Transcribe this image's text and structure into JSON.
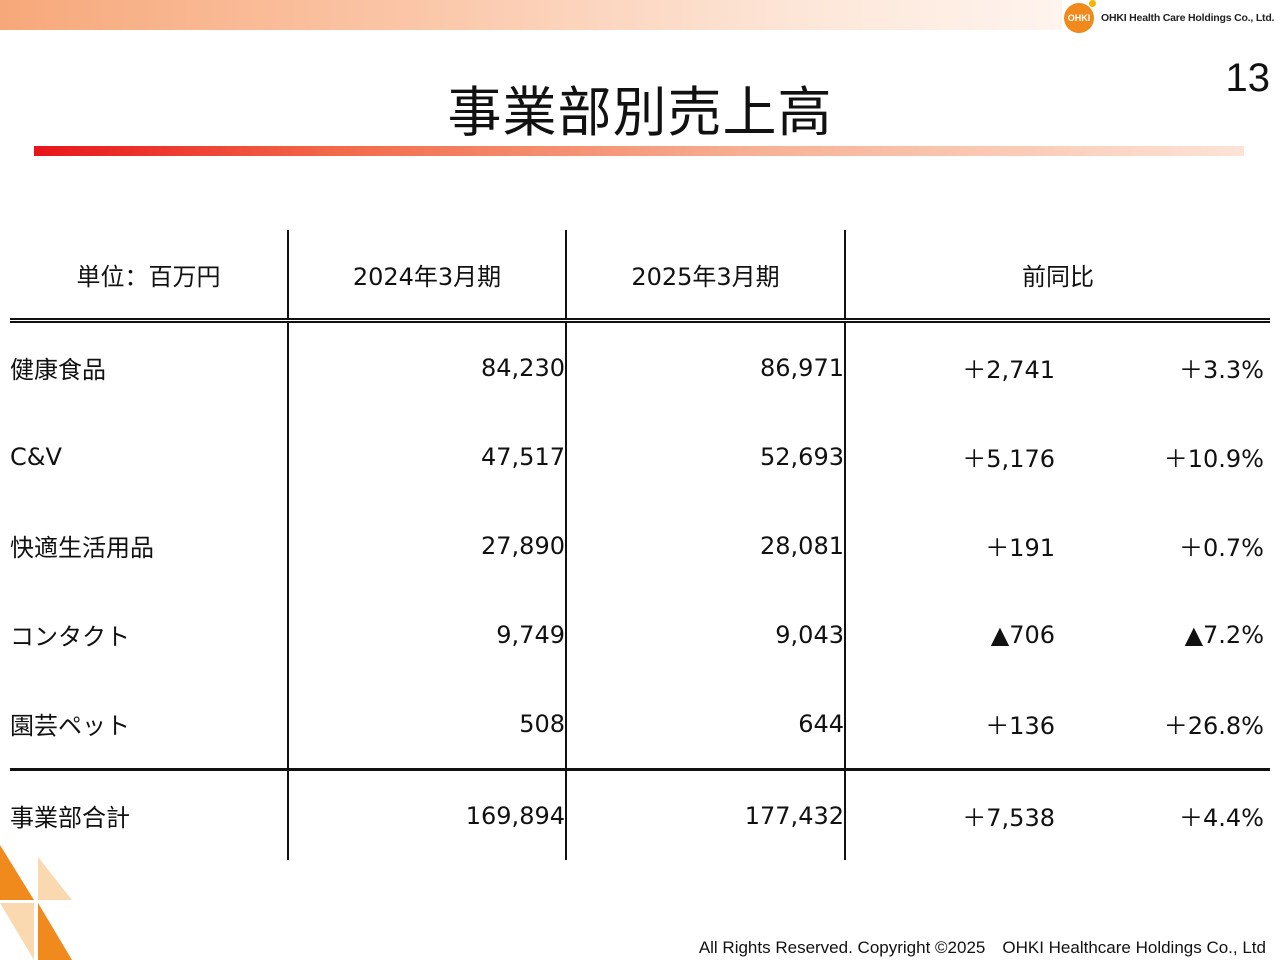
{
  "header": {
    "company_name": "OHKI Health Care Holdings Co., Ltd.",
    "logo_text": "OHKI",
    "page_number": "13"
  },
  "title": "事業部別売上高",
  "table": {
    "headers": [
      "単位：百万円",
      "2024年3月期",
      "2025年3月期",
      "前同比"
    ],
    "rows": [
      {
        "label": "健康食品",
        "fy2024": "84,230",
        "fy2025": "86,971",
        "diff": "＋2,741",
        "pct": "＋3.3%"
      },
      {
        "label": "C&V",
        "fy2024": "47,517",
        "fy2025": "52,693",
        "diff": "＋5,176",
        "pct": "＋10.9%"
      },
      {
        "label": "快適生活用品",
        "fy2024": "27,890",
        "fy2025": "28,081",
        "diff": "＋191",
        "pct": "＋0.7%"
      },
      {
        "label": "コンタクト",
        "fy2024": "9,749",
        "fy2025": "9,043",
        "diff": "▲706",
        "pct": "▲7.2%"
      },
      {
        "label": "園芸ペット",
        "fy2024": "508",
        "fy2025": "644",
        "diff": "＋136",
        "pct": "＋26.8%"
      }
    ],
    "total": {
      "label": "事業部合計",
      "fy2024": "169,894",
      "fy2025": "177,432",
      "diff": "＋7,538",
      "pct": "＋4.4%"
    }
  },
  "footer": "All Rights Reserved. Copyright ©2025　OHKI Healthcare Holdings Co., Ltd",
  "colors": {
    "accent_red": "#e8141b",
    "accent_orange": "#f08a1c",
    "corner_light": "#fbd9b0"
  }
}
